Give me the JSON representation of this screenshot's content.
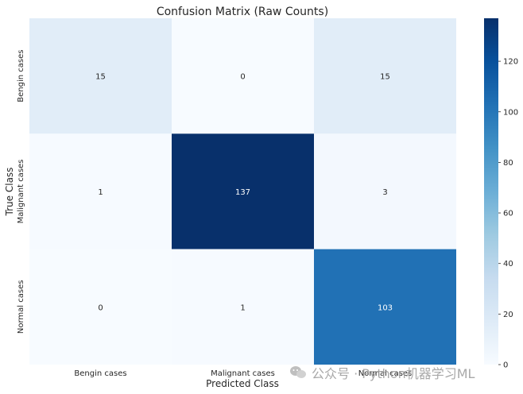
{
  "chart_data": {
    "type": "heatmap",
    "title": "Confusion Matrix (Raw Counts)",
    "xlabel": "Predicted Class",
    "ylabel": "True Class",
    "x_categories": [
      "Bengin cases",
      "Malignant cases",
      "Normal cases"
    ],
    "y_categories": [
      "Bengin cases",
      "Malignant cases",
      "Normal cases"
    ],
    "values": [
      [
        15,
        0,
        15
      ],
      [
        1,
        137,
        3
      ],
      [
        0,
        1,
        103
      ]
    ],
    "colorbar": {
      "min": 0,
      "max": 137,
      "ticks": [
        0,
        20,
        40,
        60,
        80,
        100,
        120
      ]
    },
    "colormap": [
      "#f7fbff",
      "#deebf7",
      "#c6dbef",
      "#9ecae1",
      "#6baed6",
      "#4292c6",
      "#2171b5",
      "#08519c",
      "#08306b"
    ]
  },
  "watermark": {
    "text": "公众号 · Python机器学习ML",
    "icon": "wechat-icon"
  }
}
